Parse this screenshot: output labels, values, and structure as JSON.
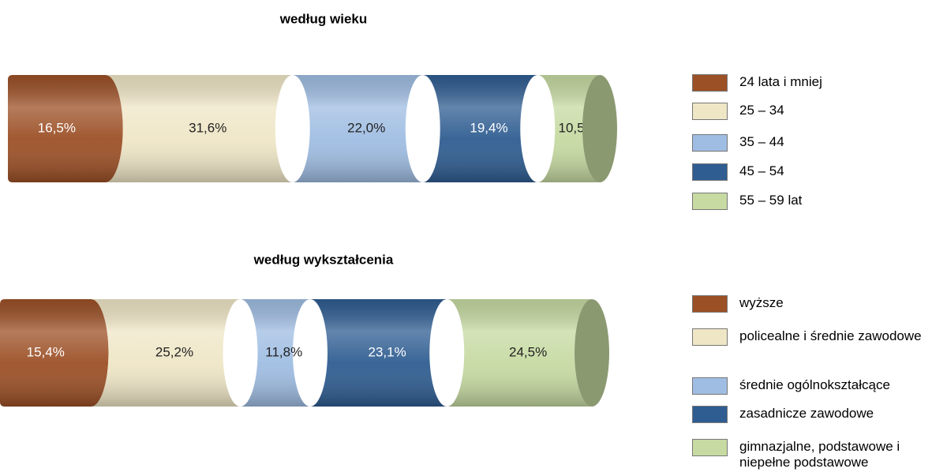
{
  "chart_data": [
    {
      "type": "bar",
      "title": "według wieku",
      "series": [
        {
          "name": "24 lata i mniej",
          "color": "#9c5026",
          "values": [
            16.5
          ],
          "value_labels": [
            "16,5%"
          ]
        },
        {
          "name": "25 – 34",
          "color": "#efe6c6",
          "values": [
            31.6
          ],
          "value_labels": [
            "31,6%"
          ]
        },
        {
          "name": "35 – 44",
          "color": "#9fbde2",
          "values": [
            22.0
          ],
          "value_labels": [
            "22,0%"
          ]
        },
        {
          "name": "45 – 54",
          "color": "#2f5d91",
          "values": [
            19.4
          ],
          "value_labels": [
            "19,4%"
          ]
        },
        {
          "name": "55 – 59 lat",
          "color": "#c6daa2",
          "values": [
            10.5
          ],
          "value_labels": [
            "10,5%"
          ]
        }
      ]
    },
    {
      "type": "bar",
      "title": "według wykształcenia",
      "series": [
        {
          "name": "wyższe",
          "color": "#9c5026",
          "values": [
            15.4
          ],
          "value_labels": [
            "15,4%"
          ]
        },
        {
          "name": "policealne i średnie zawodowe",
          "color": "#efe6c6",
          "values": [
            25.2
          ],
          "value_labels": [
            "25,2%"
          ]
        },
        {
          "name": "średnie ogólnokształcące",
          "color": "#9fbde2",
          "values": [
            11.8
          ],
          "value_labels": [
            "11,8%"
          ]
        },
        {
          "name": "zasadnicze zawodowe",
          "color": "#2f5d91",
          "values": [
            23.1
          ],
          "value_labels": [
            "23,1%"
          ]
        },
        {
          "name": "gimnazjalne, podstawowe i niepełne podstawowe",
          "color": "#c6daa2",
          "values": [
            24.5
          ],
          "value_labels": [
            "24,5%"
          ]
        }
      ]
    }
  ]
}
